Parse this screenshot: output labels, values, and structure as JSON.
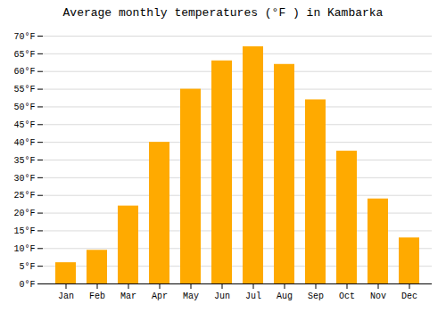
{
  "chart_data": {
    "type": "bar",
    "title": "Average monthly temperatures (°F ) in Kambarka",
    "categories": [
      "Jan",
      "Feb",
      "Mar",
      "Apr",
      "May",
      "Jun",
      "Jul",
      "Aug",
      "Sep",
      "Oct",
      "Nov",
      "Dec"
    ],
    "values": [
      6,
      9.5,
      22,
      40,
      55,
      63,
      67,
      62,
      52,
      37.5,
      24,
      13
    ],
    "color": "#FFAA00",
    "ylim": [
      0,
      70
    ],
    "yticks": [
      {
        "value": 0,
        "label": "0°F"
      },
      {
        "value": 5,
        "label": "5°F"
      },
      {
        "value": 10,
        "label": "10°F"
      },
      {
        "value": 15,
        "label": "15°F"
      },
      {
        "value": 20,
        "label": "20°F"
      },
      {
        "value": 25,
        "label": "25°F"
      },
      {
        "value": 30,
        "label": "30°F"
      },
      {
        "value": 35,
        "label": "35°F"
      },
      {
        "value": 40,
        "label": "40°F"
      },
      {
        "value": 45,
        "label": "45°F"
      },
      {
        "value": 50,
        "label": "50°F"
      },
      {
        "value": 55,
        "label": "55°F"
      },
      {
        "value": 60,
        "label": "60°F"
      },
      {
        "value": 65,
        "label": "65°F"
      },
      {
        "value": 70,
        "label": "70°F"
      }
    ],
    "grid": true
  }
}
